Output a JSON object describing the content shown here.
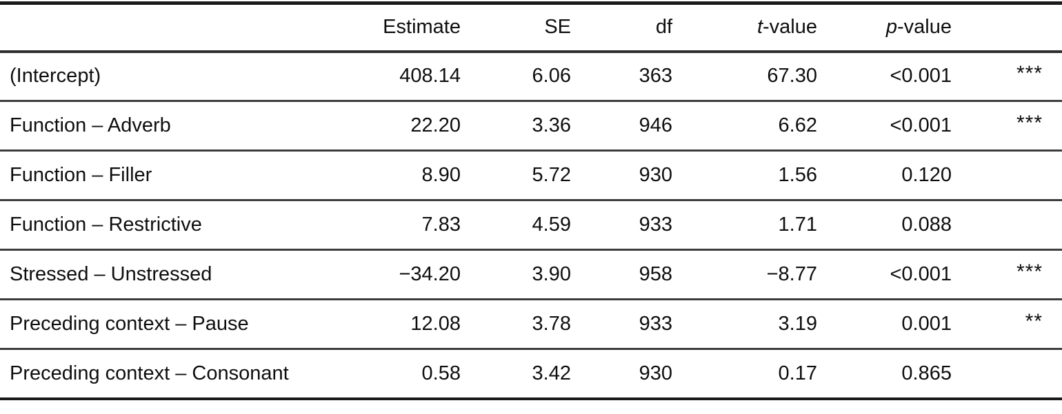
{
  "colors": {
    "background": "#ffffff",
    "text": "#0e0e0e",
    "rule_outer": "#1a1a1a",
    "rule_inner": "#3c3c3c"
  },
  "table": {
    "column_headers": {
      "term": "",
      "estimate": "Estimate",
      "se": "SE",
      "df": "df",
      "t": "t-value",
      "p": "p-value",
      "sig": ""
    },
    "rows": [
      {
        "term": "(Intercept)",
        "estimate": "408.14",
        "se": "6.06",
        "df": "363",
        "t": "67.30",
        "p": "<0.001",
        "sig": "***"
      },
      {
        "term": "Function – Adverb",
        "estimate": "22.20",
        "se": "3.36",
        "df": "946",
        "t": "6.62",
        "p": "<0.001",
        "sig": "***"
      },
      {
        "term": "Function – Filler",
        "estimate": "8.90",
        "se": "5.72",
        "df": "930",
        "t": "1.56",
        "p": "0.120",
        "sig": ""
      },
      {
        "term": "Function – Restrictive",
        "estimate": "7.83",
        "se": "4.59",
        "df": "933",
        "t": "1.71",
        "p": "0.088",
        "sig": ""
      },
      {
        "term": "Stressed – Unstressed",
        "estimate": "−34.20",
        "se": "3.90",
        "df": "958",
        "t": "−8.77",
        "p": "<0.001",
        "sig": "***"
      },
      {
        "term": "Preceding context – Pause",
        "estimate": "12.08",
        "se": "3.78",
        "df": "933",
        "t": "3.19",
        "p": "0.001",
        "sig": "**"
      },
      {
        "term": "Preceding context – Consonant",
        "estimate": "0.58",
        "se": "3.42",
        "df": "930",
        "t": "0.17",
        "p": "0.865",
        "sig": ""
      }
    ]
  }
}
